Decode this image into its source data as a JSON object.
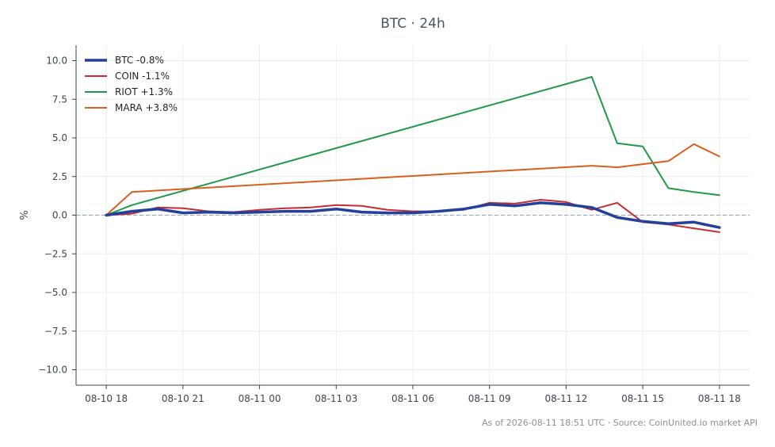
{
  "chart_data": {
    "type": "line",
    "title": "BTC · 24h",
    "xlabel": "",
    "ylabel": "%",
    "ylim": [
      -11.0,
      11.0
    ],
    "xlim": [
      "2026-08-10 16:49",
      "2026-08-11 19:11"
    ],
    "grid": true,
    "legend_position": "top-left",
    "reference_line": {
      "y": 0.0,
      "style": "dashed"
    },
    "x_ticks": [
      "08-10 18",
      "08-10 21",
      "08-11 00",
      "08-11 03",
      "08-11 06",
      "08-11 09",
      "08-11 12",
      "08-11 15",
      "08-11 18"
    ],
    "y_ticks": [
      "10.0",
      "7.5",
      "5.0",
      "2.5",
      "0.0",
      "−2.5",
      "−5.0",
      "−7.5",
      "−10.0"
    ],
    "series": [
      {
        "name": "BTC -0.8%",
        "color": "#23419a",
        "emphasis": true,
        "x": [
          "2026-08-10 18:00",
          "2026-08-10 19:00",
          "2026-08-10 20:00",
          "2026-08-10 21:00",
          "2026-08-10 22:00",
          "2026-08-10 23:00",
          "2026-08-11 00:00",
          "2026-08-11 01:00",
          "2026-08-11 02:00",
          "2026-08-11 03:00",
          "2026-08-11 04:00",
          "2026-08-11 05:00",
          "2026-08-11 06:00",
          "2026-08-11 07:00",
          "2026-08-11 08:00",
          "2026-08-11 09:00",
          "2026-08-11 10:00",
          "2026-08-11 11:00",
          "2026-08-11 12:00",
          "2026-08-11 13:00",
          "2026-08-11 14:00",
          "2026-08-11 15:00",
          "2026-08-11 16:00",
          "2026-08-11 17:00",
          "2026-08-11 18:00"
        ],
        "y": [
          0.0,
          0.25,
          0.4,
          0.15,
          0.2,
          0.15,
          0.2,
          0.25,
          0.25,
          0.4,
          0.2,
          0.15,
          0.15,
          0.25,
          0.4,
          0.7,
          0.6,
          0.8,
          0.7,
          0.5,
          -0.15,
          -0.4,
          -0.55,
          -0.45,
          -0.8
        ]
      },
      {
        "name": "COIN -1.1%",
        "color": "#c62d32",
        "x": [
          "2026-08-10 18:00",
          "2026-08-10 19:00",
          "2026-08-10 20:00",
          "2026-08-10 21:00",
          "2026-08-10 22:00",
          "2026-08-10 23:00",
          "2026-08-11 00:00",
          "2026-08-11 01:00",
          "2026-08-11 02:00",
          "2026-08-11 03:00",
          "2026-08-11 04:00",
          "2026-08-11 05:00",
          "2026-08-11 06:00",
          "2026-08-11 07:00",
          "2026-08-11 08:00",
          "2026-08-11 09:00",
          "2026-08-11 10:00",
          "2026-08-11 11:00",
          "2026-08-11 12:00",
          "2026-08-11 13:00",
          "2026-08-11 14:00",
          "2026-08-11 15:00",
          "2026-08-11 16:00",
          "2026-08-11 17:00",
          "2026-08-11 18:00"
        ],
        "y": [
          0.0,
          0.1,
          0.5,
          0.45,
          0.25,
          0.2,
          0.35,
          0.45,
          0.5,
          0.65,
          0.6,
          0.35,
          0.25,
          0.25,
          0.35,
          0.8,
          0.75,
          1.0,
          0.85,
          0.35,
          0.8,
          -0.45,
          -0.6,
          -0.85,
          -1.1
        ]
      },
      {
        "name": "RIOT +1.3%",
        "color": "#22994a",
        "x": [
          "2026-08-10 18:00",
          "2026-08-10 19:00",
          "2026-08-11 13:00",
          "2026-08-11 14:00",
          "2026-08-11 15:00",
          "2026-08-11 16:00",
          "2026-08-11 17:00",
          "2026-08-11 18:00"
        ],
        "y": [
          0.0,
          0.65,
          8.95,
          4.65,
          4.45,
          1.75,
          1.5,
          1.3
        ]
      },
      {
        "name": "MARA +3.8%",
        "color": "#d9601c",
        "x": [
          "2026-08-10 18:00",
          "2026-08-10 19:00",
          "2026-08-11 13:00",
          "2026-08-11 14:00",
          "2026-08-11 15:00",
          "2026-08-11 16:00",
          "2026-08-11 17:00",
          "2026-08-11 18:00"
        ],
        "y": [
          0.0,
          1.5,
          3.2,
          3.1,
          3.3,
          3.5,
          4.6,
          3.8
        ]
      }
    ]
  },
  "footer": "As of 2026-08-11 18:51 UTC · Source: CoinUnited.io market API"
}
